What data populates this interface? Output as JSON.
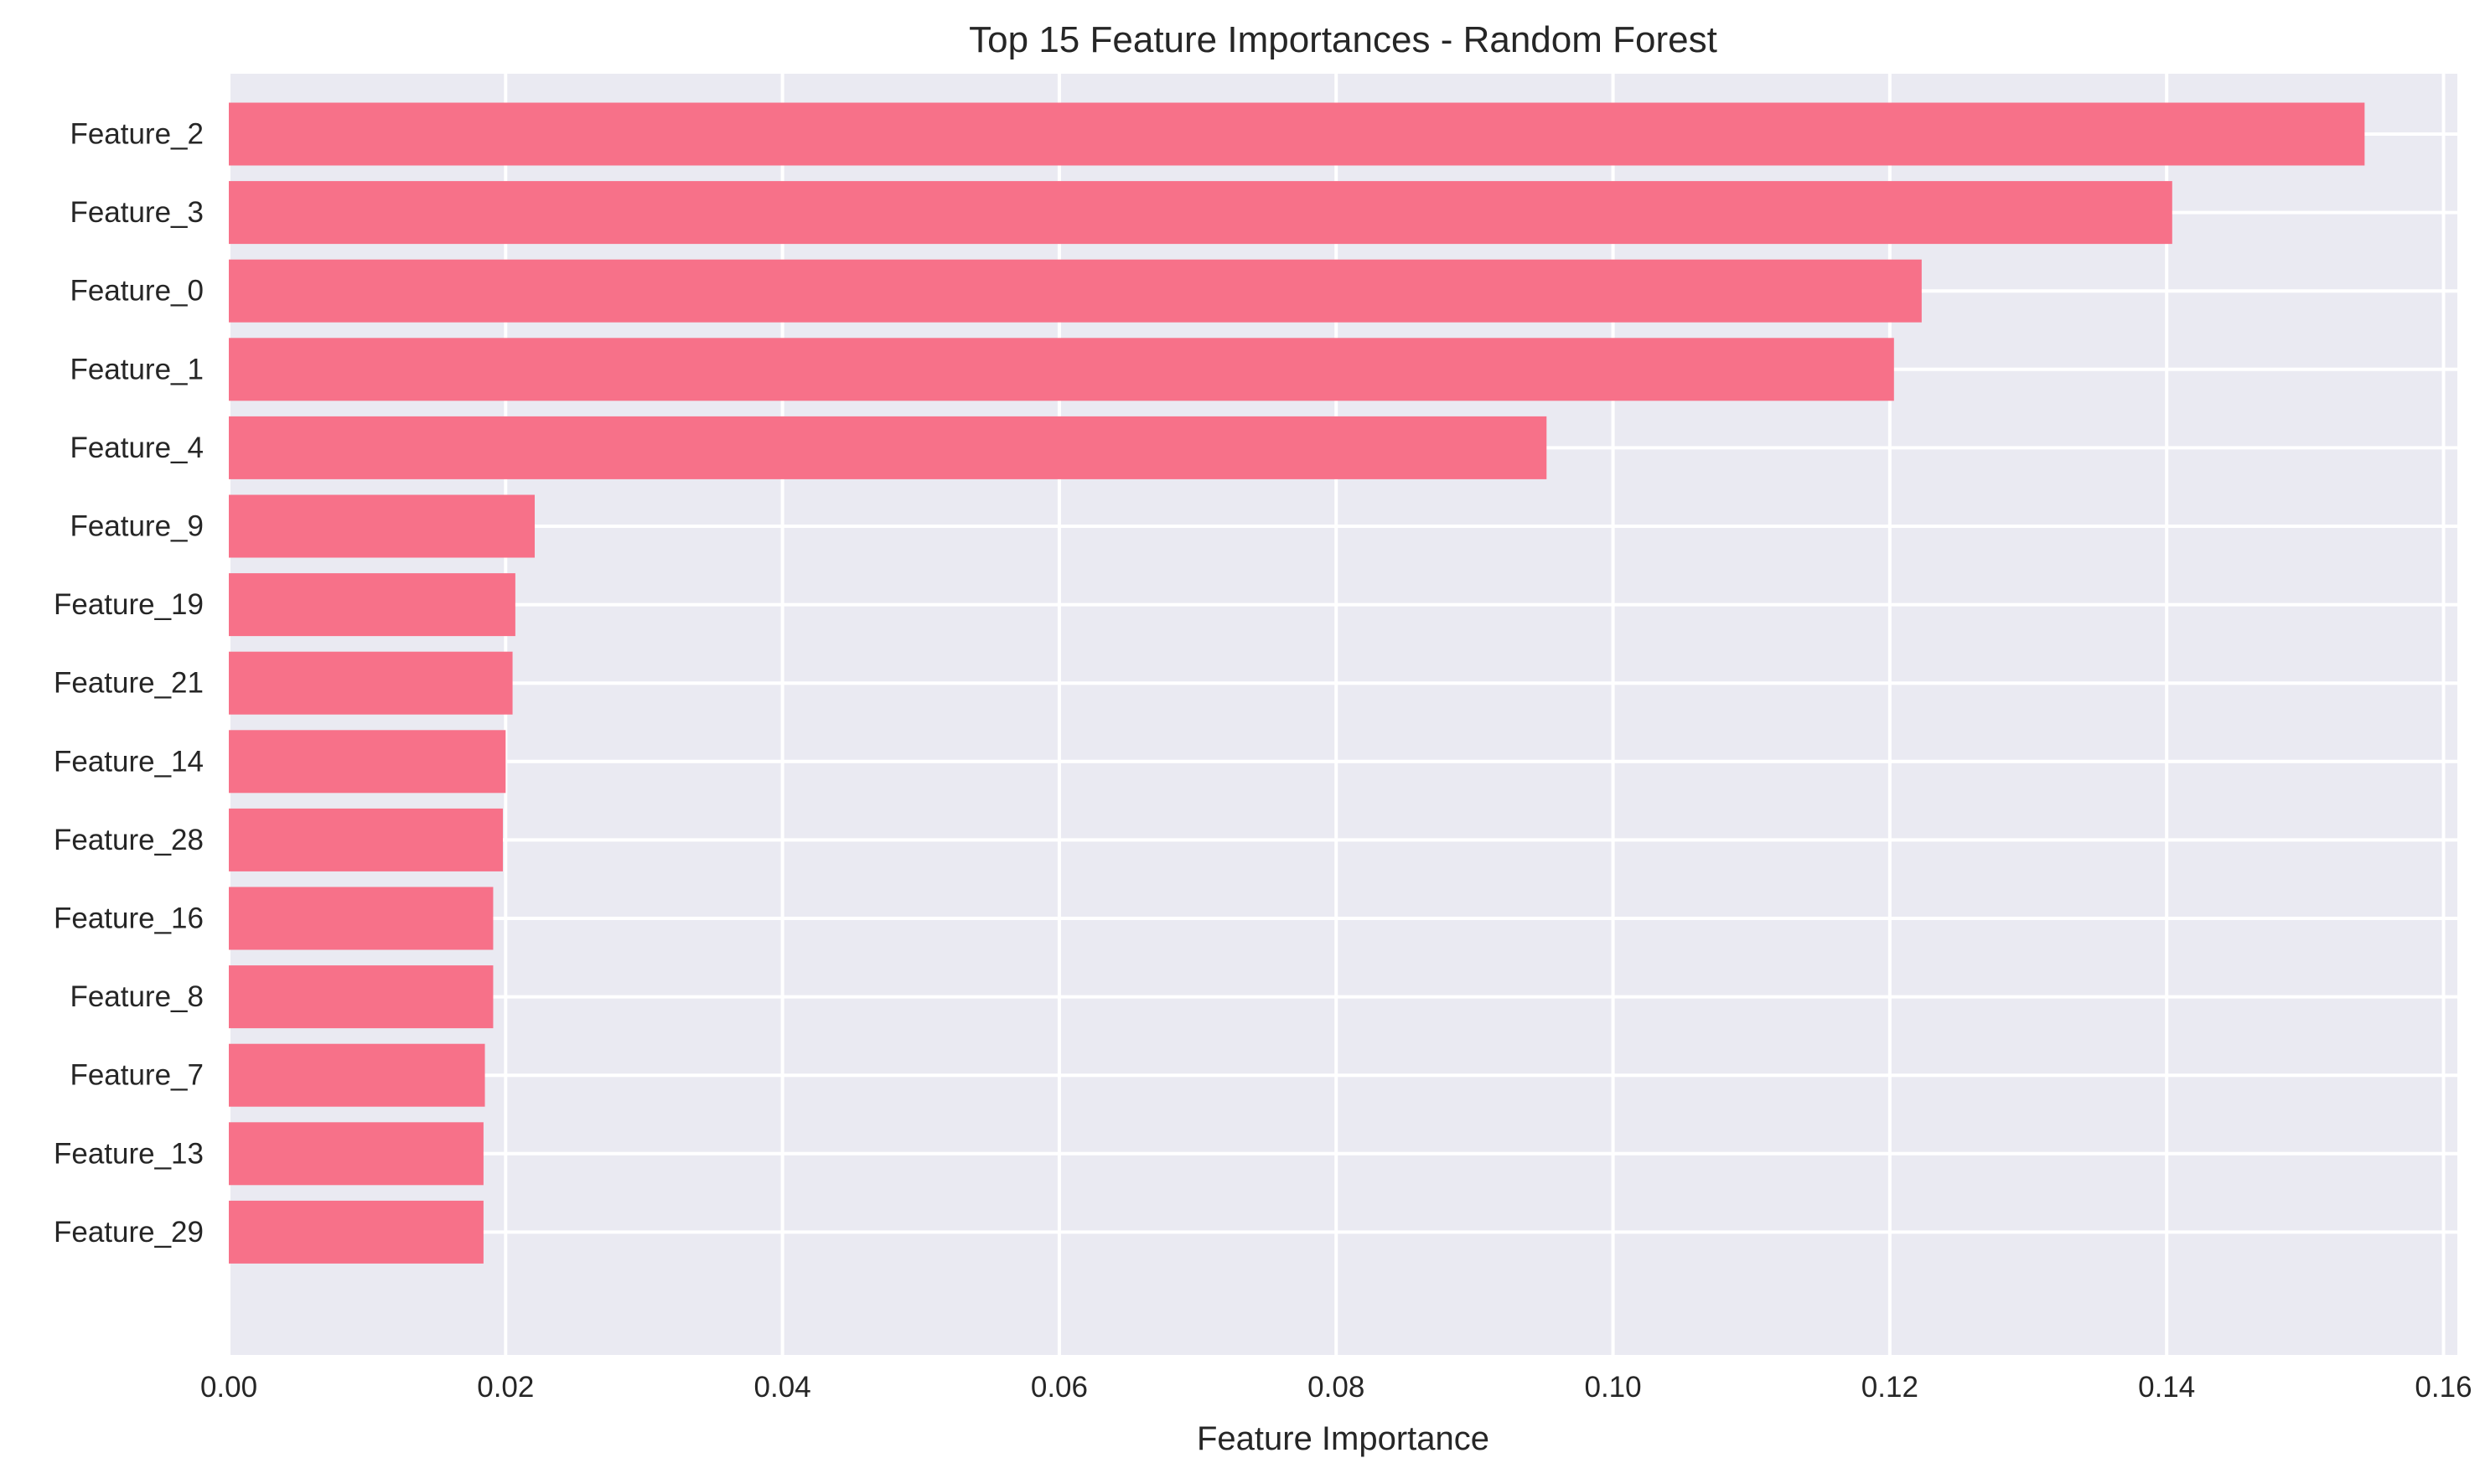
{
  "chart_data": {
    "type": "bar",
    "orientation": "horizontal",
    "title": "Top 15 Feature Importances - Random Forest",
    "xlabel": "Feature Importance",
    "ylabel": "",
    "xlim": [
      0,
      0.161
    ],
    "xticks": [
      0.0,
      0.02,
      0.04,
      0.06,
      0.08,
      0.1,
      0.12,
      0.14,
      0.16
    ],
    "xtick_labels": [
      "0.00",
      "0.02",
      "0.04",
      "0.06",
      "0.08",
      "0.10",
      "0.12",
      "0.14",
      "0.16"
    ],
    "grid": true,
    "legend": "none",
    "colors": {
      "bar": "#f77189",
      "plot_background": "#eaeaf2",
      "grid": "#ffffff",
      "text": "#262626"
    },
    "categories": [
      "Feature_2",
      "Feature_3",
      "Feature_0",
      "Feature_1",
      "Feature_4",
      "Feature_9",
      "Feature_19",
      "Feature_21",
      "Feature_14",
      "Feature_28",
      "Feature_16",
      "Feature_8",
      "Feature_7",
      "Feature_13",
      "Feature_29"
    ],
    "values": [
      0.1543,
      0.1404,
      0.1223,
      0.1203,
      0.0952,
      0.0221,
      0.0207,
      0.0205,
      0.02,
      0.0198,
      0.0191,
      0.0191,
      0.0185,
      0.0184,
      0.0184
    ]
  }
}
